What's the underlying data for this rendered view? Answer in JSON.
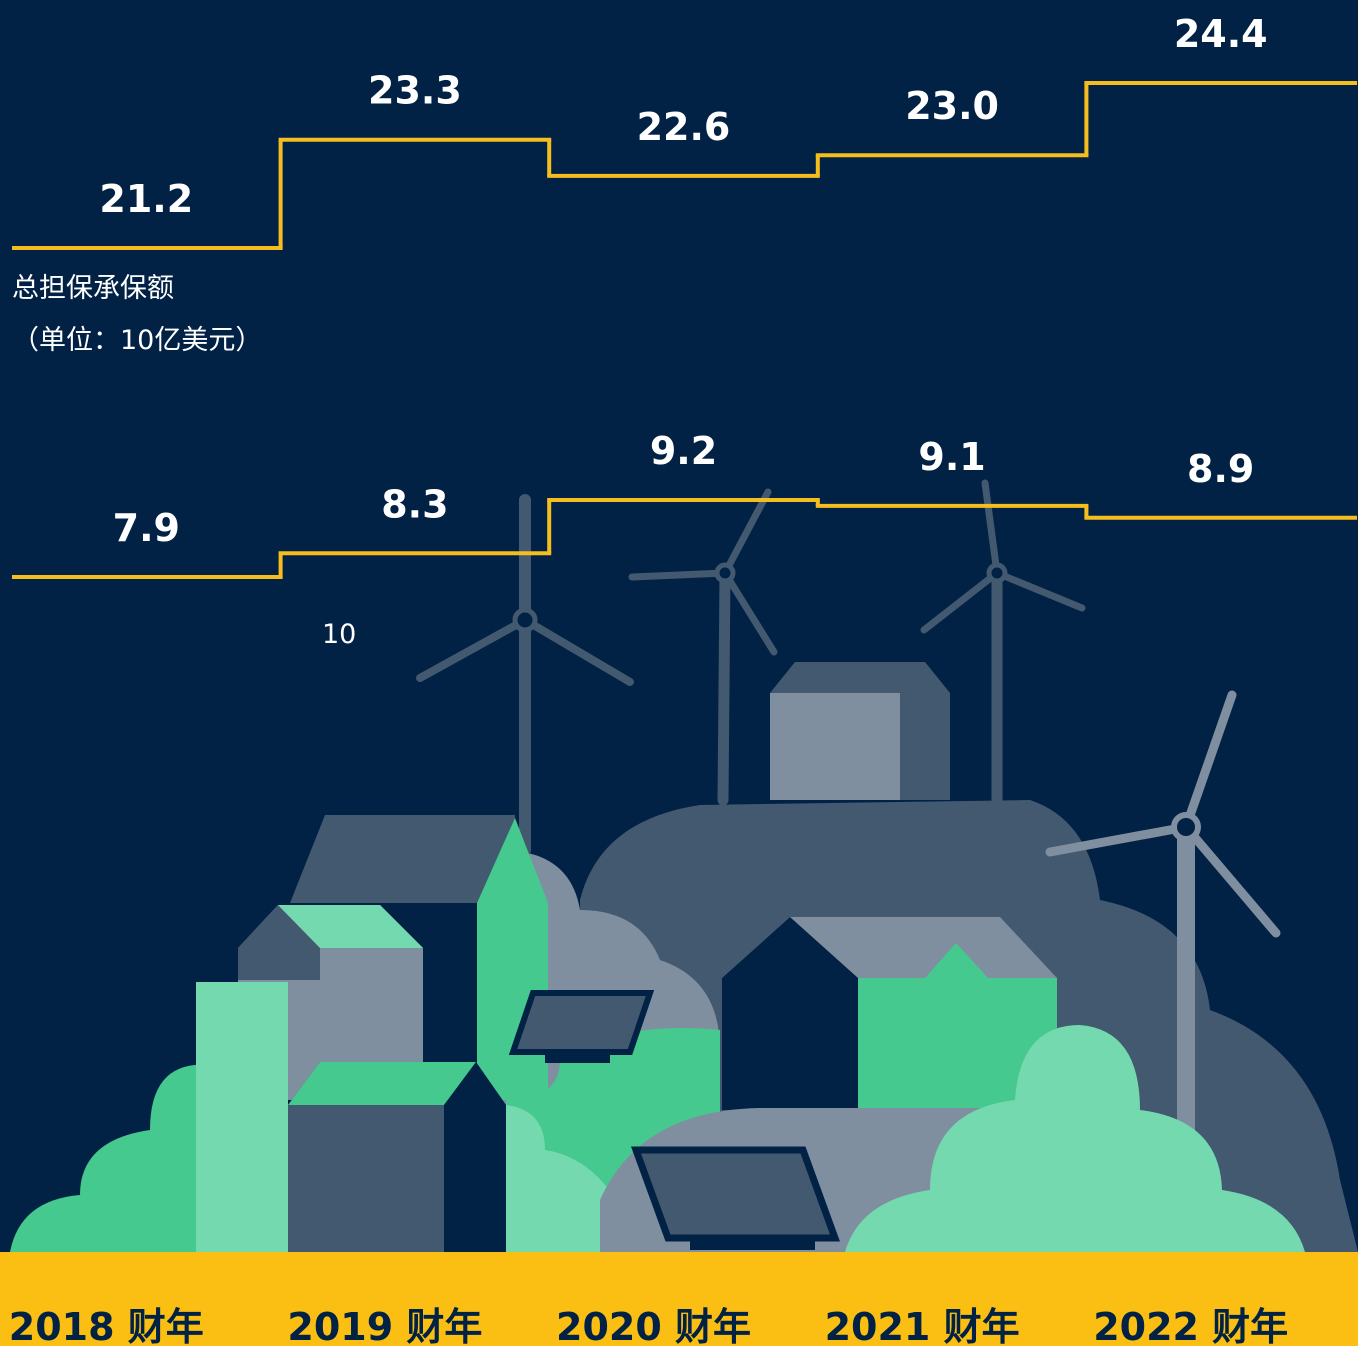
{
  "chart_data": {
    "type": "step",
    "categories": [
      "2018 财年",
      "2019 财年",
      "2020 财年",
      "2021 财年",
      "2022 财年"
    ],
    "series": [
      {
        "name": "总担保承保额",
        "unit": "（单位：10亿美元）",
        "color": "#f5be1e",
        "values": [
          21.2,
          23.3,
          22.6,
          23.0,
          24.4
        ]
      },
      {
        "color": "#f5be1e",
        "values": [
          7.9,
          8.3,
          9.2,
          9.1,
          8.9
        ]
      }
    ],
    "value_labels": [
      [
        "21.2",
        "23.3",
        "22.6",
        "23.0",
        "24.4"
      ],
      [
        "7.9",
        "8.3",
        "9.2",
        "9.1",
        "8.9"
      ]
    ],
    "annotations": [
      "10"
    ]
  }
}
